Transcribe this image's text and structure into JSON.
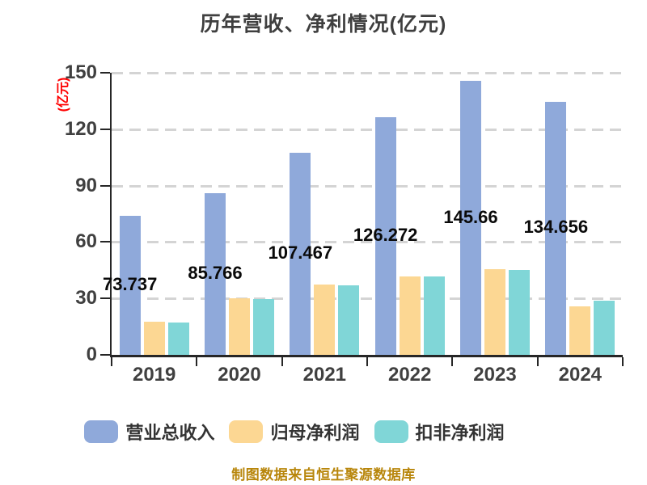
{
  "title": "历年营收、净利情况(亿元)",
  "ylabel": "(亿元)",
  "footer": "制图数据来自恒生聚源数据库",
  "colors": {
    "title_text": "#3f3f3f",
    "axis_text": "#404040",
    "axis_line": "#262626",
    "gridline": "#d4d4d4",
    "ylabel_red": "#ff0000",
    "value_label": "#0a0a0a",
    "footer_gold": "#b8860b",
    "series_blue": "#8fa9da",
    "series_orange": "#fcd793",
    "series_cyan": "#80d6d7"
  },
  "chart_data": {
    "type": "bar",
    "title": "历年营收、净利情况(亿元)",
    "xlabel": "",
    "ylabel": "(亿元)",
    "categories": [
      "2019",
      "2020",
      "2021",
      "2022",
      "2023",
      "2024"
    ],
    "series": [
      {
        "name": "营业总收入",
        "color": "#8fa9da",
        "values": [
          73.737,
          85.766,
          107.467,
          126.272,
          145.66,
          134.656
        ],
        "display_labels": [
          "73.737",
          "85.766",
          "107.467",
          "126.272",
          "145.66",
          "134.656"
        ]
      },
      {
        "name": "归母净利润",
        "color": "#fcd793",
        "values": [
          17.5,
          30.3,
          37.4,
          41.7,
          45.4,
          26.0
        ]
      },
      {
        "name": "扣非净利润",
        "color": "#80d6d7",
        "values": [
          17.3,
          29.5,
          37.0,
          41.5,
          45.1,
          29.0
        ]
      }
    ],
    "ylim": [
      0,
      150
    ],
    "yticks": [
      0,
      30,
      60,
      90,
      120,
      150
    ],
    "grid": "horizontal-dashed",
    "legend_position": "bottom",
    "value_labels_series": "营业总收入",
    "source_note": "制图数据来自恒生聚源数据库"
  }
}
